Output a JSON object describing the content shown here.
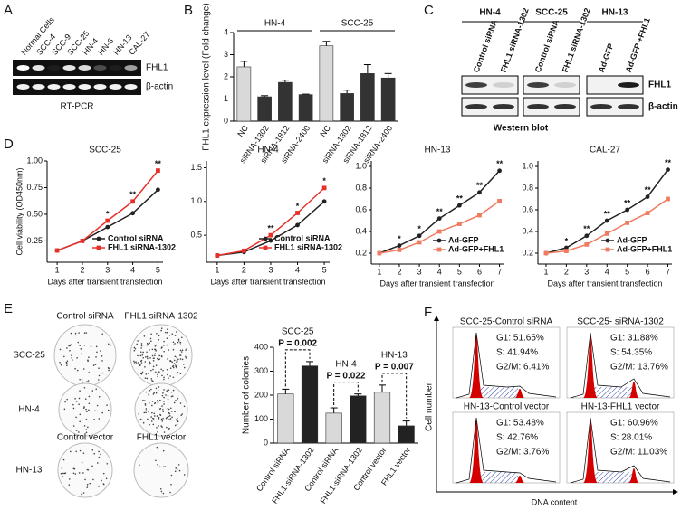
{
  "panels": [
    "A",
    "B",
    "C",
    "D",
    "E",
    "F"
  ],
  "gel": {
    "lanes": [
      "Normal Cells",
      "SCC-4",
      "SCC-9",
      "SCC-25",
      "HN-4",
      "HN-6",
      "HN-13",
      "CAL-27"
    ],
    "rows": [
      "FHL1",
      "β-actin"
    ],
    "caption": "RT-PCR"
  },
  "western": {
    "groups": [
      {
        "label": "HN-4",
        "lanes": [
          "Control siRNA",
          "FHL1 siRNA-1302"
        ]
      },
      {
        "label": "SCC-25",
        "lanes": [
          "Control siRNA",
          "FHL1 siRNA-1302"
        ]
      },
      {
        "label": "HN-13",
        "lanes": [
          "Ad-GFP",
          "Ad-GFP +FHL1"
        ]
      }
    ],
    "rows": [
      "FHL1",
      "β-actin"
    ],
    "caption": "Western blot"
  },
  "colony": {
    "columns_top": [
      "Control siRNA",
      "FHL1 siRNA-1302"
    ],
    "rows_top": [
      "SCC-25",
      "HN-4"
    ],
    "columns_bottom": [
      "Control vector",
      "FHL1 vector"
    ],
    "row_bottom": "HN-13"
  },
  "flow": {
    "ylabel": "Cell number",
    "xlabel": "DNA content",
    "panels": [
      {
        "title": "SCC-25-Control siRNA",
        "g1": "G1: 51.65%",
        "s": "S: 41.94%",
        "g2m": "G2/M: 6.41%"
      },
      {
        "title": "SCC-25- siRNA-1302",
        "g1": "G1: 31.88%",
        "s": "S: 54.35%",
        "g2m": "G2/M: 13.76%"
      },
      {
        "title": "HN-13-Control vector",
        "g1": "G1: 53.48%",
        "s": "S: 42.76%",
        "g2m": "G2/M: 3.76%"
      },
      {
        "title": "HN-13-FHL1 vector",
        "g1": "G1: 60.96%",
        "s": "S: 28.01%",
        "g2m": "G2/M: 11.03%"
      }
    ]
  },
  "chart_data": [
    {
      "type": "bar",
      "ylabel": "FHL1 expression level (Fold change)",
      "groups": [
        "HN-4",
        "SCC-25"
      ],
      "categories": [
        "NC",
        "siRNA-1302",
        "siRNA-1812",
        "siRNA-2400",
        "NC",
        "siRNA-1302",
        "siRNA-1812",
        "siRNA-2400"
      ],
      "values": [
        2.45,
        1.1,
        1.75,
        1.2,
        3.4,
        1.25,
        2.15,
        1.95
      ],
      "errors": [
        0.25,
        0.05,
        0.1,
        0.02,
        0.2,
        0.15,
        0.4,
        0.2
      ],
      "colors": [
        "#d9d9d9",
        "#333333",
        "#333333",
        "#333333",
        "#d9d9d9",
        "#333333",
        "#333333",
        "#333333"
      ],
      "ylim": [
        0,
        4
      ],
      "yticks": [
        0,
        1,
        2,
        3,
        4
      ]
    },
    {
      "type": "line",
      "title": "SCC-25",
      "xlabel": "Days after transient transfection",
      "ylabel": "Cell viability (OD450nm)",
      "x": [
        1,
        2,
        3,
        4,
        5
      ],
      "xlim": [
        0.6,
        5.2
      ],
      "xticks": [
        1,
        2,
        3,
        4,
        5
      ],
      "ylim": [
        0.05,
        1.0
      ],
      "yticks": [
        0.25,
        {
          "value": 0.5,
          "label": "0.50"
        },
        0.75,
        {
          "value": 1,
          "label": "1.00"
        }
      ],
      "legend": "lower right",
      "series": [
        {
          "name": "Control siRNA",
          "color": "#222222",
          "values": [
            0.16,
            0.25,
            0.38,
            0.51,
            0.73
          ]
        },
        {
          "name": "FHL1 siRNA-1302",
          "color": "#e8302a",
          "values": [
            0.16,
            0.25,
            0.44,
            0.62,
            0.91
          ]
        }
      ],
      "annotations": [
        {
          "x": 3,
          "text": "*"
        },
        {
          "x": 4,
          "text": "**"
        },
        {
          "x": 5,
          "text": "**"
        }
      ]
    },
    {
      "type": "line",
      "title": "HN-4",
      "xlabel": "Days after transient transfection",
      "x": [
        1,
        2,
        3,
        4,
        5
      ],
      "xlim": [
        0.6,
        5.2
      ],
      "xticks": [
        1,
        2,
        3,
        4,
        5
      ],
      "ylim": [
        0.1,
        1.6
      ],
      "yticks": [
        0.5,
        {
          "value": 1,
          "label": "1.0"
        },
        1.5
      ],
      "legend": "lower right",
      "series": [
        {
          "name": "Control siRNA",
          "color": "#222222",
          "values": [
            0.2,
            0.25,
            0.42,
            0.65,
            1.0
          ]
        },
        {
          "name": "FHL1 siRNA-1302",
          "color": "#e8302a",
          "values": [
            0.2,
            0.27,
            0.5,
            0.83,
            1.2
          ]
        }
      ],
      "annotations": [
        {
          "x": 3,
          "text": "**"
        },
        {
          "x": 4,
          "text": "*"
        },
        {
          "x": 5,
          "text": "*"
        }
      ]
    },
    {
      "type": "line",
      "title": "HN-13",
      "xlabel": "Days after transient transfection",
      "x": [
        1,
        2,
        3,
        4,
        5,
        6,
        7
      ],
      "xlim": [
        0.6,
        7.2
      ],
      "xticks": [
        1,
        2,
        3,
        4,
        5,
        6,
        7
      ],
      "ylim": [
        0.1,
        1.05
      ],
      "yticks": [
        0.2,
        0.4,
        0.6,
        0.8,
        {
          "value": 1,
          "label": "1.0"
        }
      ],
      "legend": "lower right",
      "series": [
        {
          "name": "Ad-GFP",
          "color": "#222222",
          "values": [
            0.2,
            0.27,
            0.36,
            0.52,
            0.64,
            0.76,
            0.96
          ]
        },
        {
          "name": "Ad-GFP+FHL1",
          "color": "#f07b60",
          "values": [
            0.2,
            0.23,
            0.3,
            0.4,
            0.47,
            0.55,
            0.68
          ]
        }
      ],
      "annotations": [
        {
          "x": 2,
          "text": "*"
        },
        {
          "x": 3,
          "text": "*"
        },
        {
          "x": 4,
          "text": "**"
        },
        {
          "x": 5,
          "text": "**"
        },
        {
          "x": 6,
          "text": "**"
        },
        {
          "x": 7,
          "text": "**"
        }
      ]
    },
    {
      "type": "line",
      "title": "CAL-27",
      "xlabel": "Days after transient transfection",
      "x": [
        1,
        2,
        3,
        4,
        5,
        6,
        7
      ],
      "xlim": [
        0.6,
        7.2
      ],
      "xticks": [
        1,
        2,
        3,
        4,
        5,
        6,
        7
      ],
      "ylim": [
        0.1,
        1.05
      ],
      "yticks": [
        0.2,
        0.4,
        0.6,
        0.8,
        {
          "value": 1,
          "label": "1.0"
        }
      ],
      "legend": "lower right",
      "series": [
        {
          "name": "Ad-GFP",
          "color": "#222222",
          "values": [
            0.2,
            0.25,
            0.36,
            0.5,
            0.6,
            0.72,
            0.97
          ]
        },
        {
          "name": "Ad-GFP+FHL1",
          "color": "#f07b60",
          "values": [
            0.2,
            0.22,
            0.28,
            0.38,
            0.48,
            0.57,
            0.7
          ]
        }
      ],
      "annotations": [
        {
          "x": 2,
          "text": "*"
        },
        {
          "x": 3,
          "text": "**"
        },
        {
          "x": 4,
          "text": "**"
        },
        {
          "x": 5,
          "text": "**"
        },
        {
          "x": 6,
          "text": "**"
        },
        {
          "x": 7,
          "text": "**"
        }
      ]
    },
    {
      "type": "bar",
      "ylabel": "Number of colonies",
      "categories": [
        "Control siRNA",
        "FHL1-siRNA-1302",
        "Control siRNA",
        "FHL1-siRNA-1302",
        "Control vector",
        "FHL1 vector"
      ],
      "values": [
        205,
        322,
        125,
        197,
        212,
        72
      ],
      "errors": [
        20,
        18,
        22,
        8,
        30,
        20
      ],
      "colors": [
        "#d9d9d9",
        "#222222",
        "#d9d9d9",
        "#222222",
        "#d9d9d9",
        "#222222"
      ],
      "ylim": [
        0,
        400
      ],
      "yticks": [
        0,
        100,
        200,
        300,
        400
      ],
      "comparisons": [
        {
          "group": "SCC-25",
          "p": "P = 0.002"
        },
        {
          "group": "HN-4",
          "p": "P = 0.022"
        },
        {
          "group": "HN-13",
          "p": "P = 0.007"
        }
      ]
    }
  ]
}
